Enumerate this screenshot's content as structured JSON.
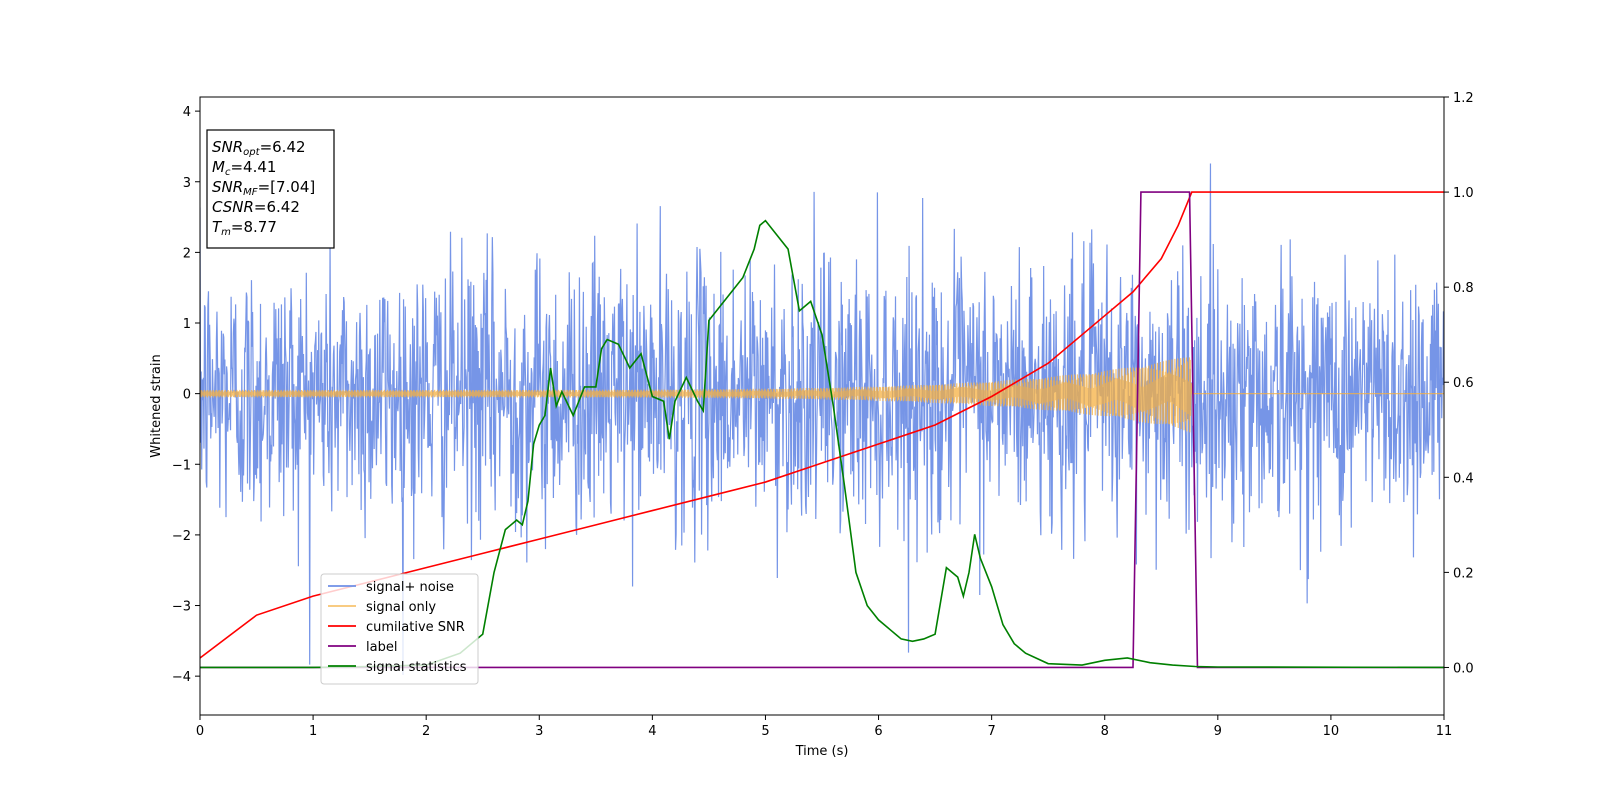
{
  "chart_data": {
    "type": "line",
    "xlabel": "Time (s)",
    "ylabel": "Whitened strain",
    "xlim": [
      0,
      11
    ],
    "ylim": [
      -4.55,
      4.2
    ],
    "y2lim": [
      -0.1,
      1.2
    ],
    "x_ticks": [
      0,
      1,
      2,
      3,
      4,
      5,
      6,
      7,
      8,
      9,
      10,
      11
    ],
    "x_tick_labels": [
      "0",
      "1",
      "2",
      "3",
      "4",
      "5",
      "6",
      "7",
      "8",
      "9",
      "10",
      "11"
    ],
    "y_ticks": [
      4,
      3,
      2,
      1,
      0,
      -1,
      -2,
      -3,
      -4
    ],
    "y_tick_labels": [
      "4",
      "3",
      "2",
      "1",
      "0",
      "−1",
      "−2",
      "−3",
      "−4"
    ],
    "y2_ticks": [
      1.2,
      1.0,
      0.8,
      0.6,
      0.4,
      0.2,
      0.0
    ],
    "y2_tick_labels": [
      "1.2",
      "1.0",
      "0.8",
      "0.6",
      "0.4",
      "0.2",
      "0.0"
    ],
    "grid": false,
    "legend_position": "lower-left",
    "annotation": {
      "lines": [
        {
          "var": "SNR",
          "sub": "opt",
          "value": "=6.42"
        },
        {
          "var": "M",
          "sub": "c",
          "value": "=4.41"
        },
        {
          "var": "SNR",
          "sub": "MF",
          "value": "=[7.04]"
        },
        {
          "var": "CSNR",
          "sub": "",
          "value": "=6.42"
        },
        {
          "var": "T",
          "sub": "m",
          "value": "=8.77"
        }
      ]
    },
    "series": [
      {
        "name": "signal+ noise",
        "axis": "left",
        "color": "#6f8fe6",
        "kind": "noise",
        "noise_std": 0.95,
        "typical_range": [
          -2.3,
          2.3
        ],
        "extremes": {
          "max": 3.8,
          "min": -4.15
        }
      },
      {
        "name": "signal only",
        "axis": "left",
        "color": "#f5b041",
        "kind": "chirp",
        "t_merger": 8.77,
        "amplitude_start": 0.05,
        "amplitude_end": 0.5
      },
      {
        "name": "cumilative SNR",
        "axis": "right",
        "color": "#ff0000",
        "x": [
          0,
          0.5,
          1,
          1.5,
          2,
          2.5,
          3,
          3.5,
          4,
          4.5,
          5,
          5.5,
          6,
          6.5,
          7,
          7.5,
          8,
          8.25,
          8.5,
          8.65,
          8.77,
          11
        ],
        "y": [
          0.02,
          0.11,
          0.15,
          0.18,
          0.21,
          0.24,
          0.27,
          0.3,
          0.33,
          0.36,
          0.39,
          0.43,
          0.47,
          0.51,
          0.57,
          0.64,
          0.74,
          0.79,
          0.86,
          0.93,
          1.0,
          1.0
        ]
      },
      {
        "name": "label",
        "axis": "right",
        "color": "#800080",
        "x": [
          0,
          8.25,
          8.32,
          8.75,
          8.82,
          11
        ],
        "y": [
          0,
          0,
          1,
          1,
          0,
          0
        ]
      },
      {
        "name": "signal statistics",
        "axis": "right",
        "color": "#008000",
        "x": [
          0,
          0.5,
          1,
          1.5,
          2,
          2.3,
          2.4,
          2.5,
          2.6,
          2.7,
          2.8,
          2.85,
          2.9,
          2.95,
          3.0,
          3.05,
          3.1,
          3.15,
          3.2,
          3.3,
          3.4,
          3.5,
          3.55,
          3.6,
          3.7,
          3.8,
          3.9,
          4.0,
          4.1,
          4.15,
          4.2,
          4.3,
          4.4,
          4.45,
          4.5,
          4.6,
          4.7,
          4.8,
          4.9,
          4.95,
          5.0,
          5.1,
          5.2,
          5.3,
          5.4,
          5.5,
          5.6,
          5.7,
          5.8,
          5.9,
          6.0,
          6.1,
          6.2,
          6.3,
          6.4,
          6.5,
          6.6,
          6.7,
          6.75,
          6.8,
          6.85,
          6.9,
          7.0,
          7.1,
          7.2,
          7.3,
          7.5,
          7.8,
          8.0,
          8.2,
          8.4,
          8.6,
          8.8,
          9.0,
          11
        ],
        "y": [
          0,
          0,
          0,
          0.002,
          0.005,
          0.03,
          0.05,
          0.07,
          0.2,
          0.29,
          0.31,
          0.3,
          0.35,
          0.47,
          0.51,
          0.53,
          0.63,
          0.55,
          0.58,
          0.53,
          0.59,
          0.59,
          0.67,
          0.69,
          0.68,
          0.63,
          0.66,
          0.57,
          0.56,
          0.48,
          0.56,
          0.61,
          0.56,
          0.54,
          0.73,
          0.76,
          0.79,
          0.82,
          0.88,
          0.93,
          0.94,
          0.91,
          0.88,
          0.75,
          0.77,
          0.7,
          0.55,
          0.38,
          0.2,
          0.13,
          0.1,
          0.08,
          0.06,
          0.055,
          0.06,
          0.07,
          0.21,
          0.19,
          0.15,
          0.2,
          0.28,
          0.23,
          0.17,
          0.09,
          0.05,
          0.03,
          0.008,
          0.005,
          0.015,
          0.02,
          0.01,
          0.005,
          0.002,
          0.001,
          0
        ]
      }
    ]
  }
}
